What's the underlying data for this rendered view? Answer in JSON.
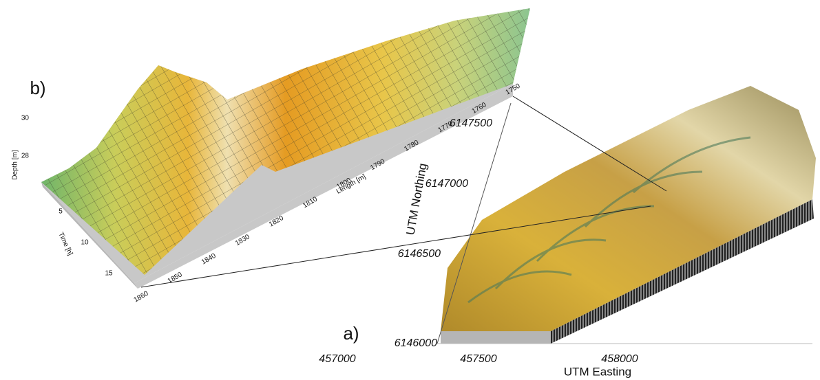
{
  "panels": [
    {
      "label": "b)",
      "axes": {
        "depth": {
          "label": "Depth [m]",
          "ticks": [
            30,
            28
          ]
        },
        "time": {
          "label": "Time [h]",
          "ticks": [
            5,
            10,
            15
          ]
        },
        "length": {
          "label": "Length [m]",
          "ticks": [
            1860,
            1850,
            1840,
            1830,
            1820,
            1810,
            1800,
            1790,
            1780,
            1770,
            1760,
            1750
          ]
        }
      }
    },
    {
      "label": "a)",
      "axes": {
        "northing": {
          "label": "UTM Northing",
          "ticks": [
            6146000,
            6146500,
            6147000,
            6147500
          ]
        },
        "easting": {
          "label": "UTM Easting",
          "ticks": [
            457000,
            457500,
            458000
          ]
        }
      }
    }
  ]
}
